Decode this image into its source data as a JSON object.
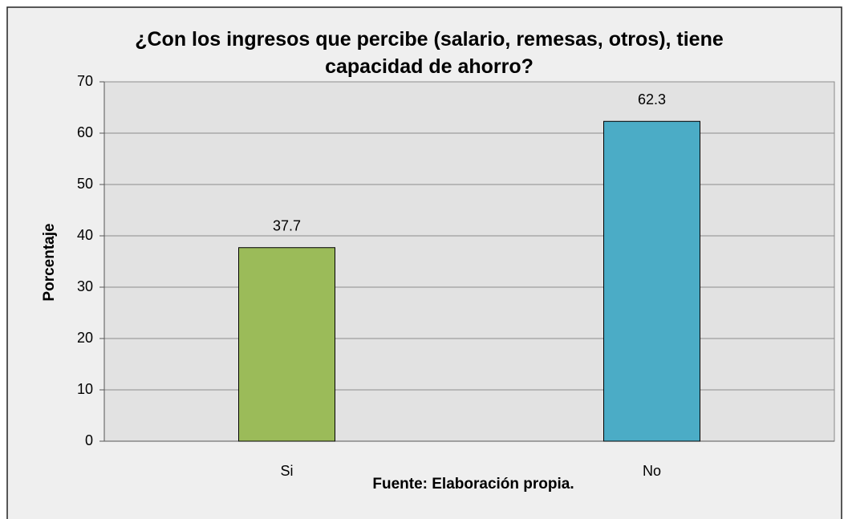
{
  "chart_data": {
    "type": "bar",
    "title": "¿Con los  ingresos que percibe (salario, remesas, otros), tiene capacidad de ahorro?",
    "ylabel": "Porcentaje",
    "caption": "Fuente: Elaboración propia.",
    "categories": [
      "Si",
      "No"
    ],
    "values": [
      37.7,
      62.3
    ],
    "colors": [
      "#9bbb59",
      "#4bacc6"
    ],
    "ylim": [
      0,
      70
    ],
    "yticks": [
      0,
      10,
      20,
      30,
      40,
      50,
      60,
      70
    ],
    "grid": true
  }
}
